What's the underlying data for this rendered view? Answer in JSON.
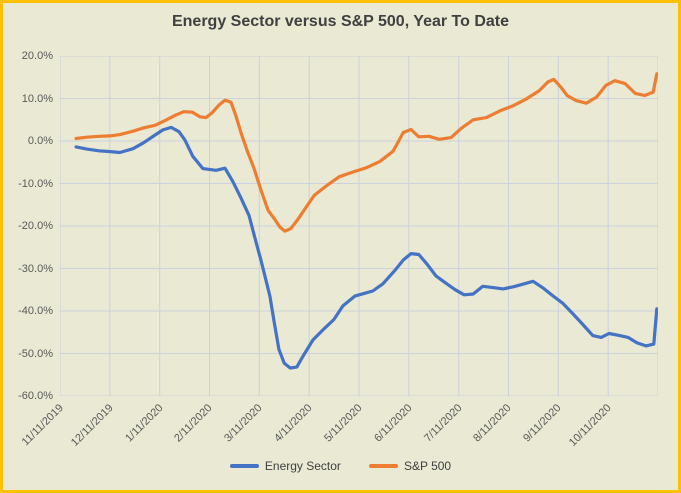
{
  "chart": {
    "title": "Energy Sector versus S&P 500, Year To Date"
  },
  "chart_data": {
    "type": "line",
    "title": "Energy Sector versus S&P 500, Year To Date",
    "xlabel": "",
    "ylabel": "",
    "ylim": [
      -60,
      20
    ],
    "y_tick_step": 10,
    "grid": true,
    "legend_position": "bottom",
    "background_color": "#e9e9d4",
    "frame_border_color": "#fdc101",
    "gridline_color": "#ccd1dc",
    "tick_label_color": "#595959",
    "y_ticks": [
      "20.0%",
      "10.0%",
      "0.0%",
      "-10.0%",
      "-20.0%",
      "-30.0%",
      "-40.0%",
      "-50.0%",
      "-60.0%"
    ],
    "x_labels": [
      "11/11/2019",
      "12/11/2019",
      "1/11/2020",
      "2/11/2020",
      "3/11/2020",
      "4/11/2020",
      "5/11/2020",
      "6/11/2020",
      "7/11/2020",
      "8/11/2020",
      "9/11/2020",
      "10/11/2020"
    ],
    "series": [
      {
        "name": "Energy Sector",
        "color": "#4472c4",
        "points": [
          [
            0.027,
            -1.4
          ],
          [
            0.045,
            -1.9
          ],
          [
            0.065,
            -2.3
          ],
          [
            0.084,
            -2.5
          ],
          [
            0.1,
            -2.7
          ],
          [
            0.122,
            -1.8
          ],
          [
            0.14,
            -0.4
          ],
          [
            0.159,
            1.4
          ],
          [
            0.172,
            2.6
          ],
          [
            0.186,
            3.2
          ],
          [
            0.199,
            2.2
          ],
          [
            0.209,
            0.2
          ],
          [
            0.222,
            -3.6
          ],
          [
            0.239,
            -6.5
          ],
          [
            0.261,
            -6.9
          ],
          [
            0.276,
            -6.4
          ],
          [
            0.289,
            -9.5
          ],
          [
            0.303,
            -13.5
          ],
          [
            0.316,
            -17.5
          ],
          [
            0.326,
            -22.8
          ],
          [
            0.336,
            -28.0
          ],
          [
            0.344,
            -32.5
          ],
          [
            0.351,
            -36.5
          ],
          [
            0.358,
            -42.5
          ],
          [
            0.366,
            -49.0
          ],
          [
            0.375,
            -52.3
          ],
          [
            0.385,
            -53.4
          ],
          [
            0.396,
            -53.2
          ],
          [
            0.406,
            -50.7
          ],
          [
            0.423,
            -46.8
          ],
          [
            0.44,
            -44.4
          ],
          [
            0.458,
            -42.0
          ],
          [
            0.473,
            -38.8
          ],
          [
            0.493,
            -36.5
          ],
          [
            0.51,
            -35.8
          ],
          [
            0.523,
            -35.3
          ],
          [
            0.54,
            -33.6
          ],
          [
            0.559,
            -30.6
          ],
          [
            0.574,
            -28.0
          ],
          [
            0.587,
            -26.5
          ],
          [
            0.6,
            -26.7
          ],
          [
            0.614,
            -29.0
          ],
          [
            0.629,
            -31.8
          ],
          [
            0.646,
            -33.5
          ],
          [
            0.661,
            -35.0
          ],
          [
            0.676,
            -36.2
          ],
          [
            0.691,
            -36.0
          ],
          [
            0.707,
            -34.2
          ],
          [
            0.724,
            -34.5
          ],
          [
            0.741,
            -34.8
          ],
          [
            0.758,
            -34.3
          ],
          [
            0.774,
            -33.7
          ],
          [
            0.791,
            -33.0
          ],
          [
            0.808,
            -34.6
          ],
          [
            0.824,
            -36.4
          ],
          [
            0.841,
            -38.2
          ],
          [
            0.858,
            -40.7
          ],
          [
            0.875,
            -43.3
          ],
          [
            0.891,
            -45.8
          ],
          [
            0.905,
            -46.2
          ],
          [
            0.918,
            -45.3
          ],
          [
            0.933,
            -45.7
          ],
          [
            0.95,
            -46.2
          ],
          [
            0.965,
            -47.5
          ],
          [
            0.98,
            -48.2
          ],
          [
            0.993,
            -47.8
          ],
          [
            0.998,
            -39.5
          ]
        ]
      },
      {
        "name": "S&P 500",
        "color": "#ed7d31",
        "points": [
          [
            0.027,
            0.6
          ],
          [
            0.045,
            0.9
          ],
          [
            0.065,
            1.1
          ],
          [
            0.084,
            1.2
          ],
          [
            0.1,
            1.5
          ],
          [
            0.122,
            2.3
          ],
          [
            0.14,
            3.1
          ],
          [
            0.159,
            3.7
          ],
          [
            0.177,
            4.9
          ],
          [
            0.192,
            6.0
          ],
          [
            0.207,
            6.9
          ],
          [
            0.221,
            6.8
          ],
          [
            0.234,
            5.7
          ],
          [
            0.244,
            5.5
          ],
          [
            0.254,
            6.6
          ],
          [
            0.266,
            8.5
          ],
          [
            0.276,
            9.6
          ],
          [
            0.286,
            9.1
          ],
          [
            0.294,
            6.0
          ],
          [
            0.303,
            1.8
          ],
          [
            0.313,
            -2.3
          ],
          [
            0.324,
            -6.3
          ],
          [
            0.336,
            -11.5
          ],
          [
            0.348,
            -16.3
          ],
          [
            0.36,
            -18.6
          ],
          [
            0.368,
            -20.3
          ],
          [
            0.376,
            -21.2
          ],
          [
            0.386,
            -20.6
          ],
          [
            0.398,
            -18.4
          ],
          [
            0.408,
            -16.3
          ],
          [
            0.425,
            -12.8
          ],
          [
            0.445,
            -10.6
          ],
          [
            0.467,
            -8.4
          ],
          [
            0.49,
            -7.3
          ],
          [
            0.512,
            -6.3
          ],
          [
            0.535,
            -4.8
          ],
          [
            0.557,
            -2.4
          ],
          [
            0.574,
            2.0
          ],
          [
            0.587,
            2.7
          ],
          [
            0.6,
            1.0
          ],
          [
            0.617,
            1.1
          ],
          [
            0.634,
            0.4
          ],
          [
            0.654,
            0.8
          ],
          [
            0.671,
            3.0
          ],
          [
            0.691,
            5.0
          ],
          [
            0.713,
            5.5
          ],
          [
            0.736,
            7.1
          ],
          [
            0.758,
            8.3
          ],
          [
            0.78,
            9.9
          ],
          [
            0.801,
            11.8
          ],
          [
            0.816,
            13.9
          ],
          [
            0.826,
            14.5
          ],
          [
            0.838,
            12.6
          ],
          [
            0.848,
            10.7
          ],
          [
            0.863,
            9.5
          ],
          [
            0.88,
            8.9
          ],
          [
            0.897,
            10.3
          ],
          [
            0.913,
            13.1
          ],
          [
            0.928,
            14.2
          ],
          [
            0.945,
            13.5
          ],
          [
            0.962,
            11.2
          ],
          [
            0.978,
            10.7
          ],
          [
            0.992,
            11.5
          ],
          [
            0.998,
            15.8
          ]
        ]
      }
    ]
  }
}
